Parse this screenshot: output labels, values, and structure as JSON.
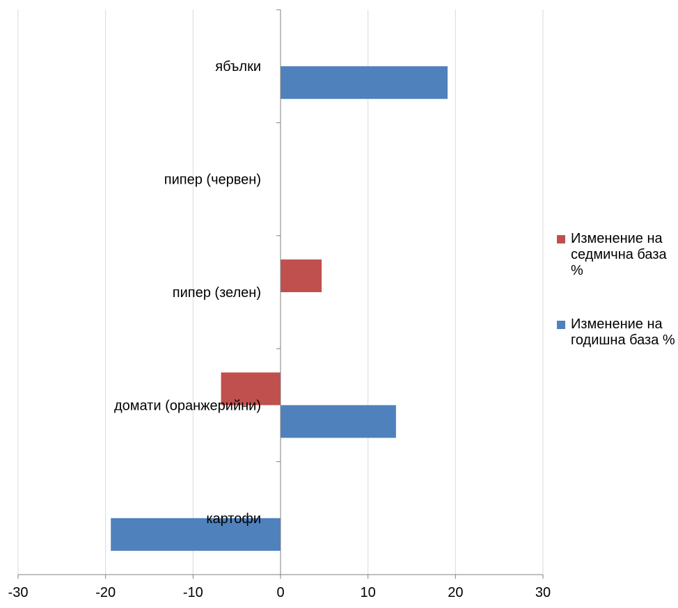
{
  "chart_data": {
    "type": "bar",
    "orientation": "horizontal",
    "categories": [
      "ябълки",
      "пипер (червен)",
      "пипер (зелен)",
      "домати (оранжерийни)",
      "картофи"
    ],
    "series": [
      {
        "name": "Изменение на седмична база %",
        "color": "#c0504d",
        "values": [
          null,
          null,
          4.7,
          -6.8,
          null
        ]
      },
      {
        "name": "Изменение на годишна база %",
        "color": "#4f81bd",
        "values": [
          19.1,
          null,
          null,
          13.2,
          -19.4
        ]
      }
    ],
    "x_ticks": [
      "-30",
      "-20",
      "-10",
      "0",
      "10",
      "20",
      "30"
    ],
    "xlim": [
      -30,
      30
    ],
    "grid": true,
    "legend_position": "right"
  },
  "legend": {
    "weekly_label": "Изменение на седмична база %",
    "yearly_label": "Изменение на годишна база %"
  }
}
